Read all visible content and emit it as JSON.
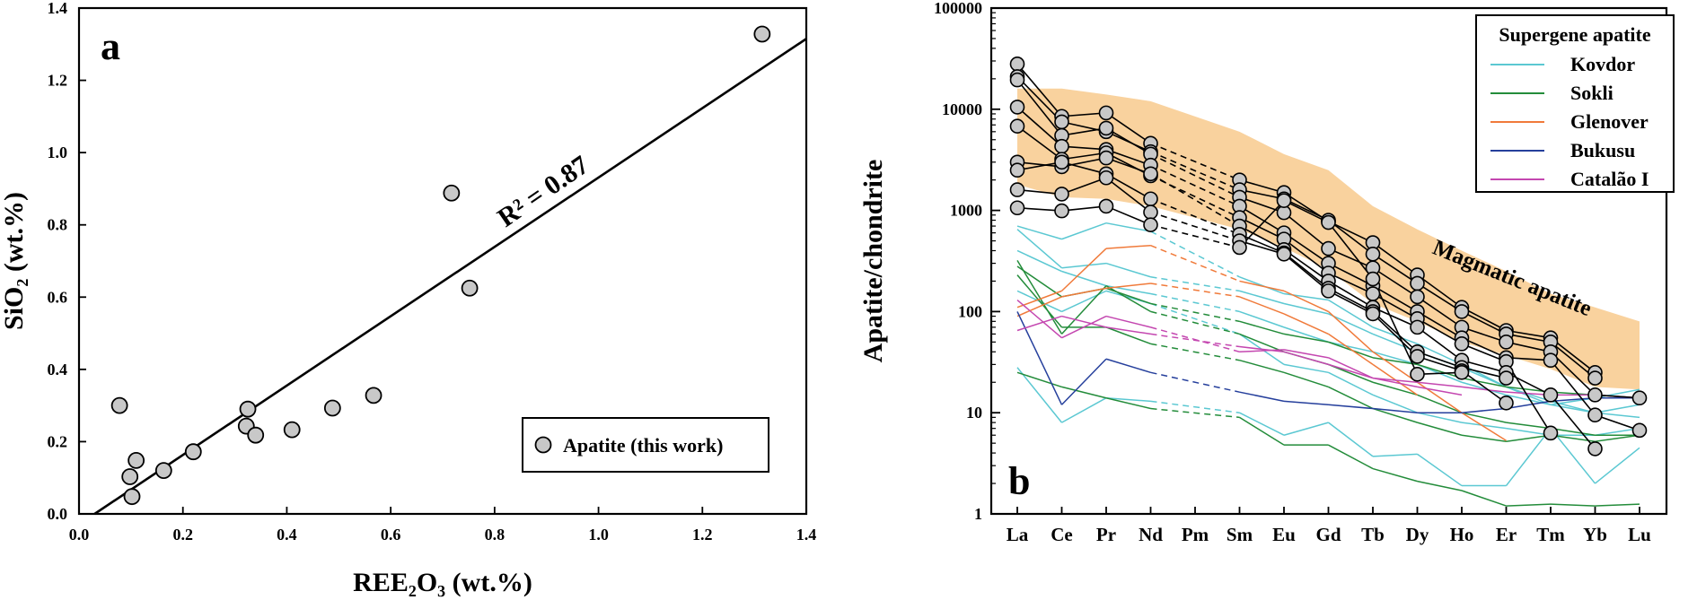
{
  "panels": {
    "a": {
      "label": "a",
      "legend_label": "Apatite (this work)",
      "r2_label": "R² = 0.87"
    },
    "b": {
      "label": "b",
      "legend_title": "Supergene apatite",
      "band_label": "Magmatic apatite"
    }
  },
  "chart_data": [
    {
      "type": "scatter",
      "panel": "a",
      "xlabel": "REE₂O₃ (wt.%)",
      "ylabel": "SiO₂ (wt.%)",
      "xlim": [
        0.0,
        1.4
      ],
      "ylim": [
        0.0,
        1.4
      ],
      "xticks": [
        "0.0",
        "0.2",
        "0.4",
        "0.6",
        "0.8",
        "1.0",
        "1.2",
        "1.4"
      ],
      "yticks": [
        "0.0",
        "0.2",
        "0.4",
        "0.6",
        "0.8",
        "1.0",
        "1.2",
        "1.4"
      ],
      "series": [
        {
          "name": "Apatite (this work)",
          "marker": "circle",
          "color": "#c8c8c8",
          "points": [
            [
              0.078,
              0.3
            ],
            [
              0.098,
              0.103
            ],
            [
              0.102,
              0.048
            ],
            [
              0.11,
              0.148
            ],
            [
              0.163,
              0.12
            ],
            [
              0.22,
              0.172
            ],
            [
              0.322,
              0.243
            ],
            [
              0.325,
              0.29
            ],
            [
              0.34,
              0.218
            ],
            [
              0.41,
              0.233
            ],
            [
              0.488,
              0.293
            ],
            [
              0.567,
              0.328
            ],
            [
              0.717,
              0.888
            ],
            [
              0.752,
              0.625
            ],
            [
              1.315,
              1.328
            ]
          ]
        }
      ],
      "regression": {
        "r2": 0.87,
        "label": "R² = 0.87",
        "line": [
          [
            0.03,
            0.0
          ],
          [
            1.4,
            1.315
          ]
        ]
      },
      "legend_position": "bottom-right",
      "grid": false
    },
    {
      "type": "line",
      "panel": "b",
      "ylabel": "Apatite/chondrite",
      "y_scale": "log",
      "ylim": [
        1,
        100000
      ],
      "yticks": [
        "1",
        "10",
        "100",
        "1000",
        "10000",
        "100000"
      ],
      "categories": [
        "La",
        "Ce",
        "Pr",
        "Nd",
        "Pm",
        "Sm",
        "Eu",
        "Gd",
        "Tb",
        "Dy",
        "Ho",
        "Er",
        "Tm",
        "Yb",
        "Lu"
      ],
      "legend_title": "Supergene apatite",
      "legend_position": "top-right",
      "grid": false,
      "band": {
        "label": "Magmatic apatite",
        "color": "#f9d29e",
        "upper": {
          "La": 16000,
          "Ce": 16000,
          "Pr": 14000,
          "Nd": 12000,
          "Sm": 6000,
          "Eu": 3600,
          "Gd": 2500,
          "Tb": 1100,
          "Dy": 650,
          "Ho": 400,
          "Er": 250,
          "Tm": 150,
          "Yb": 110,
          "Lu": 80
        },
        "lower": {
          "La": 1800,
          "Ce": 1350,
          "Pr": 1300,
          "Nd": 1100,
          "Sm": 650,
          "Eu": 430,
          "Gd": 260,
          "Tb": 120,
          "Dy": 80,
          "Ho": 50,
          "Er": 37,
          "Tm": 27,
          "Yb": 18,
          "Lu": 17
        }
      },
      "series": [
        {
          "name": "Kovdor",
          "color": "#5bc8d2"
        },
        {
          "name": "Sokli",
          "color": "#238c3a"
        },
        {
          "name": "Glenover",
          "color": "#f07a3a"
        },
        {
          "name": "Bukusu",
          "color": "#253f9c"
        },
        {
          "name": "Catalão I",
          "color": "#c447b0"
        }
      ],
      "lines": [
        {
          "series": "Kovdor",
          "values": {
            "La": 700,
            "Ce": 520,
            "Pr": 750,
            "Nd": 620,
            "Sm": 220,
            "Eu": 150,
            "Gd": 130,
            "Tb": 70,
            "Dy": 48,
            "Ho": 30,
            "Er": 18,
            "Tm": 13,
            "Yb": 10,
            "Lu": 9
          }
        },
        {
          "series": "Kovdor",
          "values": {
            "La": 650,
            "Ce": 270,
            "Pr": 300,
            "Nd": 220,
            "Sm": 160,
            "Eu": 120,
            "Gd": 95,
            "Tb": 60,
            "Dy": 40,
            "Ho": 28,
            "Er": 18,
            "Tm": 12,
            "Yb": 14,
            "Lu": 17
          }
        },
        {
          "series": "Kovdor",
          "values": {
            "La": 400,
            "Ce": 250,
            "Pr": 180,
            "Nd": 150,
            "Sm": 100,
            "Eu": 70,
            "Gd": 50,
            "Tb": 40,
            "Dy": 30,
            "Ho": 20,
            "Er": 15,
            "Tm": 12,
            "Yb": 10,
            "Lu": 12
          }
        },
        {
          "series": "Kovdor",
          "values": {
            "La": 160,
            "Ce": 100,
            "Pr": 160,
            "Nd": 120,
            "Sm": 60,
            "Eu": 30,
            "Gd": 25,
            "Tb": 15,
            "Dy": 10,
            "Ho": 8,
            "Er": 7,
            "Tm": 6,
            "Yb": 6,
            "Lu": 7
          }
        },
        {
          "series": "Kovdor",
          "values": {
            "La": 28,
            "Ce": 8,
            "Pr": 14,
            "Nd": 13,
            "Sm": 10,
            "Eu": 6,
            "Gd": 8,
            "Tb": 3.7,
            "Dy": 3.9,
            "Ho": 1.9,
            "Er": 1.9,
            "Tm": 7,
            "Yb": 2,
            "Lu": 4.5
          }
        },
        {
          "series": "Sokli",
          "values": {
            "La": 280,
            "Ce": 140,
            "Pr": 170,
            "Nd": 120,
            "Sm": 80,
            "Eu": 60,
            "Gd": 50,
            "Tb": 35,
            "Dy": 30,
            "Ho": 22,
            "Er": 18,
            "Tm": 16,
            "Yb": 15,
            "Lu": 14
          }
        },
        {
          "series": "Sokli",
          "values": {
            "La": 320,
            "Ce": 60,
            "Pr": 180,
            "Nd": 100,
            "Sm": 60,
            "Eu": 40,
            "Gd": 30,
            "Tb": 20,
            "Dy": 15,
            "Ho": 10,
            "Er": 8,
            "Tm": 7,
            "Yb": 6,
            "Lu": 6
          }
        },
        {
          "series": "Sokli",
          "values": {
            "La": 230,
            "Ce": 70,
            "Pr": 70,
            "Nd": 48,
            "Sm": 33,
            "Eu": 25,
            "Gd": 18,
            "Tb": 11,
            "Dy": 8,
            "Ho": 6,
            "Er": 5.2,
            "Tm": 6,
            "Yb": 5.2,
            "Lu": 6
          }
        },
        {
          "series": "Sokli",
          "values": {
            "La": 25,
            "Ce": 18,
            "Pr": 14,
            "Nd": 11,
            "Sm": 9,
            "Eu": 4.8,
            "Gd": 4.8,
            "Tb": 2.8,
            "Dy": 2.1,
            "Ho": 1.7,
            "Er": 1.2,
            "Tm": 1.25,
            "Yb": 1.2,
            "Lu": 1.25
          }
        },
        {
          "series": "Glenover",
          "values": {
            "La": 110,
            "Ce": 160,
            "Pr": 420,
            "Nd": 450,
            "Sm": 200,
            "Eu": 160,
            "Gd": 100,
            "Tb": 40,
            "Dy": 20,
            "Ho": 10,
            "Er": 5.3
          }
        },
        {
          "series": "Glenover",
          "values": {
            "La": 90,
            "Ce": 140,
            "Pr": 170,
            "Nd": 190,
            "Sm": 140,
            "Eu": 95,
            "Gd": 60,
            "Tb": 30,
            "Dy": 15
          }
        },
        {
          "series": "Bukusu",
          "values": {
            "La": 100,
            "Ce": 12,
            "Pr": 34,
            "Nd": 25,
            "Sm": 16,
            "Eu": 13,
            "Gd": 12,
            "Tb": 11,
            "Dy": 10,
            "Ho": 10,
            "Er": 11,
            "Tm": 13,
            "Yb": 14,
            "Lu": 14
          }
        },
        {
          "series": "Catalão I",
          "values": {
            "La": 130,
            "Ce": 55,
            "Pr": 90,
            "Nd": 70,
            "Sm": 40,
            "Eu": 42,
            "Gd": 35,
            "Tb": 22,
            "Dy": 20,
            "Ho": 18,
            "Er": 16,
            "Tm": 15,
            "Yb": 15,
            "Lu": 14
          }
        },
        {
          "series": "Catalão I",
          "values": {
            "La": 65,
            "Ce": 90,
            "Pr": 70,
            "Nd": 60,
            "Sm": 45,
            "Eu": 40,
            "Gd": 30,
            "Tb": 22,
            "Dy": 18,
            "Ho": 15
          }
        },
        {
          "series": "Apatite (this work)",
          "values": {
            "La": 28000,
            "Ce": 8500,
            "Pr": 9200,
            "Nd": 4600,
            "Sm": 2000,
            "Eu": 1500,
            "Gd": 780,
            "Tb": 480,
            "Dy": 230,
            "Ho": 110,
            "Er": 65,
            "Tm": 55,
            "Yb": 25
          }
        },
        {
          "series": "Apatite (this work)",
          "values": {
            "La": 21000,
            "Ce": 7500,
            "Pr": 6000,
            "Nd": 3800,
            "Sm": 1600,
            "Eu": 1300,
            "Gd": 800,
            "Tb": 370,
            "Dy": 190,
            "Ho": 100,
            "Er": 60,
            "Tm": 50,
            "Yb": 22
          }
        },
        {
          "series": "Apatite (this work)",
          "values": {
            "La": 19500,
            "Ce": 5500,
            "Pr": 6500,
            "Nd": 3600,
            "Sm": 1350,
            "Eu": 950,
            "Gd": 420,
            "Tb": 270,
            "Dy": 140,
            "Ho": 70,
            "Er": 50,
            "Tm": 40,
            "Yb": 15,
            "Lu": 14
          }
        },
        {
          "series": "Apatite (this work)",
          "values": {
            "La": 10500,
            "Ce": 4300,
            "Pr": 4000,
            "Nd": 2800,
            "Sm": 1100,
            "Eu": 600,
            "Gd": 300,
            "Tb": 180,
            "Dy": 100,
            "Ho": 55,
            "Er": 35,
            "Tm": 33,
            "Yb": 9.5,
            "Lu": 6.7
          }
        },
        {
          "series": "Apatite (this work)",
          "values": {
            "La": 6800,
            "Ce": 3200,
            "Pr": 3700,
            "Nd": 2200,
            "Sm": 850,
            "Eu": 520,
            "Gd": 240,
            "Tb": 150,
            "Dy": 85,
            "Ho": 48,
            "Er": 32,
            "Tm": 6.3
          }
        },
        {
          "series": "Apatite (this work)",
          "values": {
            "La": 3000,
            "Ce": 2700,
            "Pr": 3300,
            "Nd": 2300,
            "Sm": 700,
            "Eu": 410,
            "Gd": 200,
            "Tb": 110,
            "Dy": 70,
            "Ho": 33,
            "Er": 25,
            "Tm": 15,
            "Yb": 4.4
          }
        },
        {
          "series": "Apatite (this work)",
          "values": {
            "La": 2500,
            "Ce": 3000,
            "Pr": 2300,
            "Nd": 1300,
            "Sm": 580,
            "Eu": 380,
            "Gd": 170,
            "Tb": 100,
            "Dy": 40,
            "Ho": 28,
            "Er": 22
          }
        },
        {
          "series": "Apatite (this work)",
          "values": {
            "La": 1600,
            "Ce": 1450,
            "Pr": 2100,
            "Nd": 960,
            "Sm": 500,
            "Eu": 370,
            "Gd": 160,
            "Tb": 95,
            "Dy": 36,
            "Ho": 26,
            "Er": 12.5
          }
        },
        {
          "series": "Apatite (this work)",
          "values": {
            "La": 1060,
            "Ce": 990,
            "Pr": 1100,
            "Nd": 720,
            "Sm": 430,
            "Eu": 1250,
            "Gd": 760,
            "Tb": 210,
            "Dy": 24,
            "Ho": 25
          }
        }
      ]
    }
  ]
}
